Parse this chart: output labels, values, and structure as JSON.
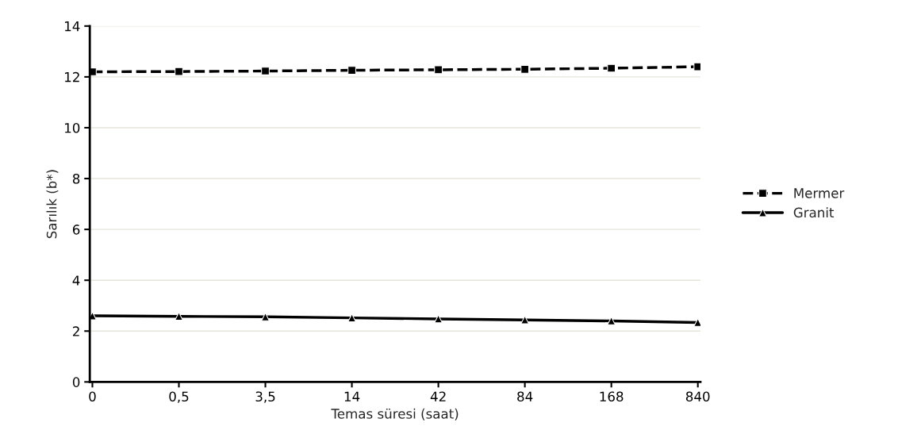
{
  "chart_data": {
    "type": "line",
    "xlabel": "Temas süresi (saat)",
    "ylabel": "Sarılık (b*)",
    "categories": [
      "0",
      "0,5",
      "3,5",
      "14",
      "42",
      "84",
      "168",
      "840"
    ],
    "series": [
      {
        "name": "Mermer",
        "color": "#000000",
        "marker": "square",
        "line_style": "dashed",
        "values": [
          12.2,
          12.21,
          12.23,
          12.26,
          12.28,
          12.3,
          12.34,
          12.4
        ]
      },
      {
        "name": "Granit",
        "color": "#000000",
        "marker": "triangle",
        "line_style": "solid",
        "values": [
          2.6,
          2.58,
          2.56,
          2.52,
          2.48,
          2.44,
          2.4,
          2.34
        ]
      }
    ],
    "ylim": [
      0,
      14
    ],
    "yticks": [
      0,
      2,
      4,
      6,
      8,
      10,
      12,
      14
    ],
    "grid": "y",
    "legend": "right"
  }
}
